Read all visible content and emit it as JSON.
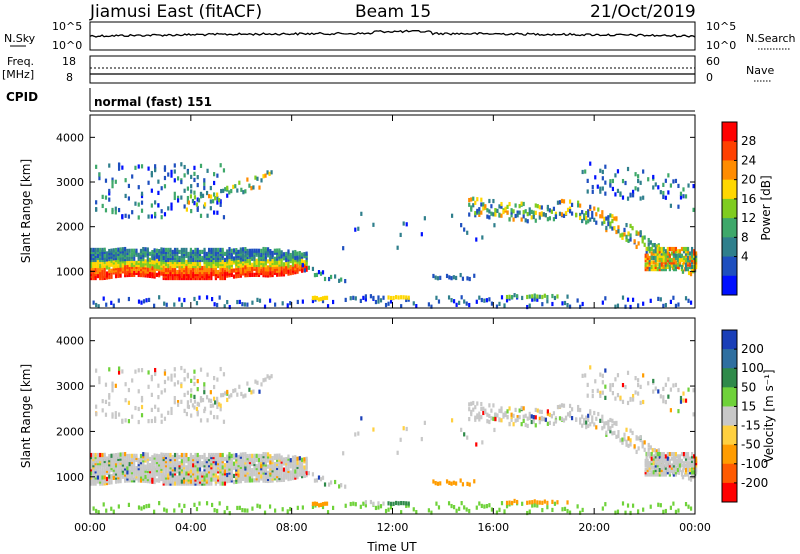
{
  "header": {
    "station": "Jiamusi East (fitACF)",
    "beam": "Beam 15",
    "date": "21/Oct/2019"
  },
  "side_labels": {
    "nsky": "N.Sky",
    "freq": "Freq.",
    "freq_unit": "[MHz]",
    "cpid": "CPID",
    "nsearch": "N.Search",
    "nave": "Nave",
    "cpid_value": "normal (fast) 151"
  },
  "noise_panel": {
    "left_ticks": [
      "10^5",
      "10^0"
    ],
    "right_ticks": [
      "10^5",
      "10^0"
    ]
  },
  "freq_panel": {
    "left_ticks": [
      "18",
      "8"
    ],
    "right_ticks": [
      "60",
      "0"
    ]
  },
  "chart_data": [
    {
      "type": "heatmap",
      "name": "power",
      "ylabel": "Slant Range [km]",
      "xlabel": "Time UT",
      "ylim": [
        180,
        4500
      ],
      "y_ticks": [
        "4000",
        "3000",
        "2000",
        "1000"
      ],
      "x_ticks": [
        "00:00",
        "04:00",
        "08:00",
        "12:00",
        "16:00",
        "20:00",
        "00:00"
      ],
      "colorbar": {
        "label": "Power [dB]",
        "ticks": [
          "28",
          "24",
          "20",
          "16",
          "12",
          "8",
          "4"
        ],
        "colors": [
          "#ff0000",
          "#ff4000",
          "#ff8c00",
          "#ffd700",
          "#7fcc20",
          "#3ea86a",
          "#2f7f8c",
          "#1e4fbf",
          "#0010ff"
        ]
      },
      "features": [
        {
          "band": "main echo",
          "time_start": "00:00",
          "time_end": "08:30",
          "range_km": [
            800,
            1500
          ]
        },
        {
          "band": "upper echo",
          "time_start": "00:00",
          "time_end": "05:00",
          "range_km": [
            2200,
            3400
          ]
        },
        {
          "band": "upper echo",
          "time_start": "14:00",
          "time_end": "24:00",
          "range_km": [
            1000,
            3500
          ]
        }
      ]
    },
    {
      "type": "heatmap",
      "name": "velocity",
      "ylabel": "Slant Range [km]",
      "xlabel": "Time UT",
      "ylim": [
        180,
        4500
      ],
      "y_ticks": [
        "4000",
        "3000",
        "2000",
        "1000"
      ],
      "x_ticks": [
        "00:00",
        "04:00",
        "08:00",
        "12:00",
        "16:00",
        "20:00",
        "00:00"
      ],
      "colorbar": {
        "label": "Velocity [m s⁻¹]",
        "ticks": [
          "200",
          "100",
          "50",
          "15",
          "-15",
          "-50",
          "-100",
          "-200"
        ],
        "colors": [
          "#1a3fb8",
          "#2f6fa0",
          "#2f8a4a",
          "#6fd23a",
          "#c8c8c8",
          "#ffd040",
          "#ff9c00",
          "#ff5a00",
          "#ff0000"
        ]
      }
    }
  ]
}
